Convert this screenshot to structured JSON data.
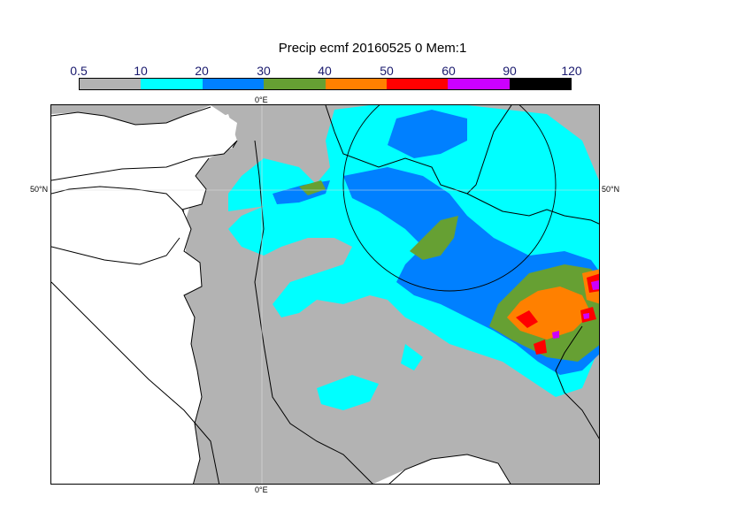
{
  "title": "Precip ecmf 20160525 0 Mem:1",
  "legend": {
    "ticks": [
      "0.5",
      "10",
      "20",
      "30",
      "40",
      "50",
      "60",
      "90",
      "120"
    ],
    "colors": [
      "#b3b3b3",
      "#00ffff",
      "#0080ff",
      "#66a033",
      "#ff8000",
      "#ff0000",
      "#cc00ff",
      "#000000"
    ]
  },
  "axes": {
    "lon_top": "0°E",
    "lon_bottom": "0°E",
    "lat_left": "50°N",
    "lat_right": "50°N"
  },
  "map": {
    "sea_color": "#ffffff",
    "land_color": "#b3b3b3",
    "coast_color": "#000000"
  }
}
